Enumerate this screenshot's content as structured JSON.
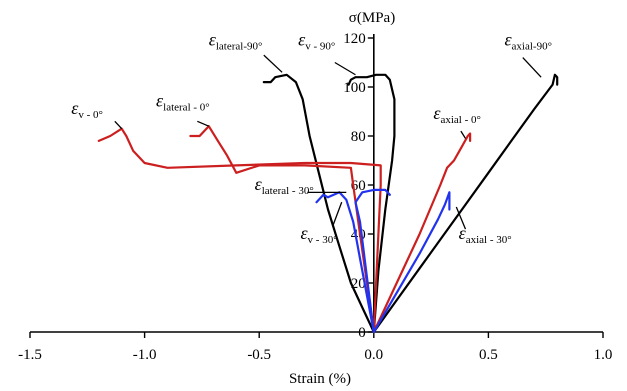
{
  "chart_data": {
    "type": "line",
    "title": "",
    "xlabel": "Strain (%)",
    "ylabel": "σ(MPa)",
    "xlim": [
      -1.5,
      1.0
    ],
    "ylim": [
      0,
      120
    ],
    "x_ticks": [
      -1.5,
      -1.0,
      -0.5,
      0.0,
      0.5,
      1.0
    ],
    "x_tick_labels": [
      "-1.5",
      "-1.0",
      "-0.5",
      "0.0",
      "0.5",
      "1.0"
    ],
    "y_ticks": [
      0,
      20,
      40,
      60,
      80,
      100,
      120
    ],
    "y_tick_labels": [
      "0",
      "20",
      "40",
      "60",
      "80",
      "100",
      "120"
    ],
    "grid": false,
    "legend": "none",
    "colors": {
      "orientation_90": "#000000",
      "orientation_0": "#cc1f1f",
      "orientation_30": "#2233ee"
    },
    "series": [
      {
        "key": "axial_90",
        "color": "#000000",
        "points": [
          [
            0,
            0
          ],
          [
            0.1,
            13
          ],
          [
            0.2,
            26
          ],
          [
            0.3,
            39
          ],
          [
            0.4,
            52
          ],
          [
            0.5,
            65
          ],
          [
            0.6,
            78
          ],
          [
            0.7,
            91
          ],
          [
            0.78,
            101
          ],
          [
            0.79,
            105
          ],
          [
            0.8,
            104
          ],
          [
            0.8,
            101
          ]
        ]
      },
      {
        "key": "v_90",
        "color": "#000000",
        "points": [
          [
            0,
            0
          ],
          [
            0.02,
            25
          ],
          [
            0.05,
            50
          ],
          [
            0.08,
            70
          ],
          [
            0.09,
            80
          ],
          [
            0.09,
            95
          ],
          [
            0.07,
            103
          ],
          [
            0.05,
            105
          ],
          [
            0.01,
            105
          ],
          [
            -0.03,
            104
          ],
          [
            -0.08,
            104
          ],
          [
            -0.1,
            103
          ],
          [
            -0.11,
            101
          ]
        ]
      },
      {
        "key": "lateral_90",
        "color": "#000000",
        "points": [
          [
            0,
            0
          ],
          [
            -0.05,
            10
          ],
          [
            -0.1,
            20
          ],
          [
            -0.15,
            35
          ],
          [
            -0.2,
            50
          ],
          [
            -0.24,
            65
          ],
          [
            -0.28,
            80
          ],
          [
            -0.31,
            95
          ],
          [
            -0.34,
            102
          ],
          [
            -0.38,
            105
          ],
          [
            -0.43,
            104
          ],
          [
            -0.45,
            102
          ],
          [
            -0.48,
            102
          ]
        ]
      },
      {
        "key": "axial_0",
        "color": "#cc1f1f",
        "points": [
          [
            0,
            0
          ],
          [
            0.1,
            20
          ],
          [
            0.2,
            40
          ],
          [
            0.29,
            60
          ],
          [
            0.32,
            67
          ],
          [
            0.35,
            70
          ],
          [
            0.38,
            75
          ],
          [
            0.41,
            80
          ],
          [
            0.42,
            81
          ],
          [
            0.42,
            78
          ]
        ]
      },
      {
        "key": "v_0",
        "color": "#cc1f1f",
        "points": [
          [
            0,
            0
          ],
          [
            0.01,
            20
          ],
          [
            0.02,
            40
          ],
          [
            0.03,
            60
          ],
          [
            0.03,
            68
          ],
          [
            -0.1,
            69
          ],
          [
            -0.3,
            69
          ],
          [
            -0.6,
            68
          ],
          [
            -0.9,
            67
          ],
          [
            -1.0,
            69
          ],
          [
            -1.05,
            74
          ],
          [
            -1.08,
            80
          ],
          [
            -1.1,
            83
          ],
          [
            -1.15,
            80
          ],
          [
            -1.2,
            78
          ]
        ]
      },
      {
        "key": "lateral_0",
        "color": "#cc1f1f",
        "points": [
          [
            0,
            0
          ],
          [
            -0.03,
            20
          ],
          [
            -0.06,
            40
          ],
          [
            -0.09,
            60
          ],
          [
            -0.1,
            67
          ],
          [
            -0.3,
            68
          ],
          [
            -0.5,
            68
          ],
          [
            -0.6,
            65
          ],
          [
            -0.64,
            72
          ],
          [
            -0.68,
            78
          ],
          [
            -0.72,
            84
          ],
          [
            -0.76,
            80
          ],
          [
            -0.8,
            80
          ]
        ]
      },
      {
        "key": "axial_30",
        "color": "#2233ee",
        "points": [
          [
            0,
            0
          ],
          [
            0.1,
            16
          ],
          [
            0.2,
            32
          ],
          [
            0.28,
            46
          ],
          [
            0.31,
            52
          ],
          [
            0.33,
            57
          ],
          [
            0.33,
            50
          ]
        ]
      },
      {
        "key": "v_30",
        "color": "#2233ee",
        "points": [
          [
            0,
            0
          ],
          [
            -0.03,
            15
          ],
          [
            -0.06,
            30
          ],
          [
            -0.09,
            45
          ],
          [
            -0.12,
            54
          ],
          [
            -0.15,
            57
          ],
          [
            -0.2,
            55
          ],
          [
            -0.22,
            56
          ],
          [
            -0.25,
            53
          ]
        ]
      },
      {
        "key": "lateral_30",
        "color": "#2233ee",
        "points": [
          [
            0,
            0
          ],
          [
            -0.02,
            15
          ],
          [
            -0.04,
            30
          ],
          [
            -0.06,
            45
          ],
          [
            -0.08,
            53
          ],
          [
            -0.05,
            57
          ],
          [
            0.0,
            58
          ],
          [
            0.05,
            58
          ],
          [
            0.07,
            56
          ]
        ]
      }
    ],
    "annotations": [
      {
        "key": "lateral_90",
        "symbol": "ε",
        "sub": "lateral-90°",
        "at": [
          -0.72,
          117
        ],
        "color": "#000000"
      },
      {
        "key": "v_90",
        "symbol": "ε",
        "sub": "v - 90°",
        "at": [
          -0.33,
          117
        ],
        "color": "#000000"
      },
      {
        "key": "axial_90",
        "symbol": "ε",
        "sub": "axial-90°",
        "at": [
          0.57,
          117
        ],
        "color": "#000000"
      },
      {
        "key": "v_0",
        "symbol": "ε",
        "sub": "v - 0°",
        "at": [
          -1.32,
          89
        ],
        "color": "#000000"
      },
      {
        "key": "lateral_0",
        "symbol": "ε",
        "sub": "lateral - 0°",
        "at": [
          -0.95,
          92
        ],
        "color": "#000000"
      },
      {
        "key": "axial_0",
        "symbol": "ε",
        "sub": "axial - 0°",
        "at": [
          0.26,
          87
        ],
        "color": "#000000"
      },
      {
        "key": "lateral_30",
        "symbol": "ε",
        "sub": "lateral - 30°",
        "at": [
          -0.52,
          58
        ],
        "color": "#000000"
      },
      {
        "key": "v_30",
        "symbol": "ε",
        "sub": "v - 30°",
        "at": [
          -0.32,
          38
        ],
        "color": "#000000"
      },
      {
        "key": "axial_30",
        "symbol": "ε",
        "sub": "axial - 30°",
        "at": [
          0.37,
          38
        ],
        "color": "#000000"
      }
    ],
    "pointers": [
      {
        "key": "lateral_90",
        "from": [
          -0.48,
          113
        ],
        "to": [
          -0.4,
          106
        ]
      },
      {
        "key": "v_90",
        "from": [
          -0.17,
          110
        ],
        "to": [
          -0.08,
          105
        ]
      },
      {
        "key": "axial_90",
        "from": [
          0.65,
          112
        ],
        "to": [
          0.73,
          104
        ]
      },
      {
        "key": "v_0",
        "from": [
          -1.13,
          86
        ],
        "to": [
          -1.1,
          83
        ]
      },
      {
        "key": "lateral_0",
        "from": [
          -0.77,
          86
        ],
        "to": [
          -0.72,
          84
        ]
      },
      {
        "key": "axial_0",
        "from": [
          0.38,
          82
        ],
        "to": [
          0.4,
          79
        ]
      },
      {
        "key": "lateral_30",
        "from": [
          -0.29,
          57
        ],
        "to": [
          -0.12,
          57
        ]
      },
      {
        "key": "v_30",
        "from": [
          -0.18,
          43
        ],
        "to": [
          -0.14,
          53
        ]
      },
      {
        "key": "axial_30",
        "from": [
          0.4,
          42
        ],
        "to": [
          0.36,
          51
        ]
      }
    ]
  }
}
